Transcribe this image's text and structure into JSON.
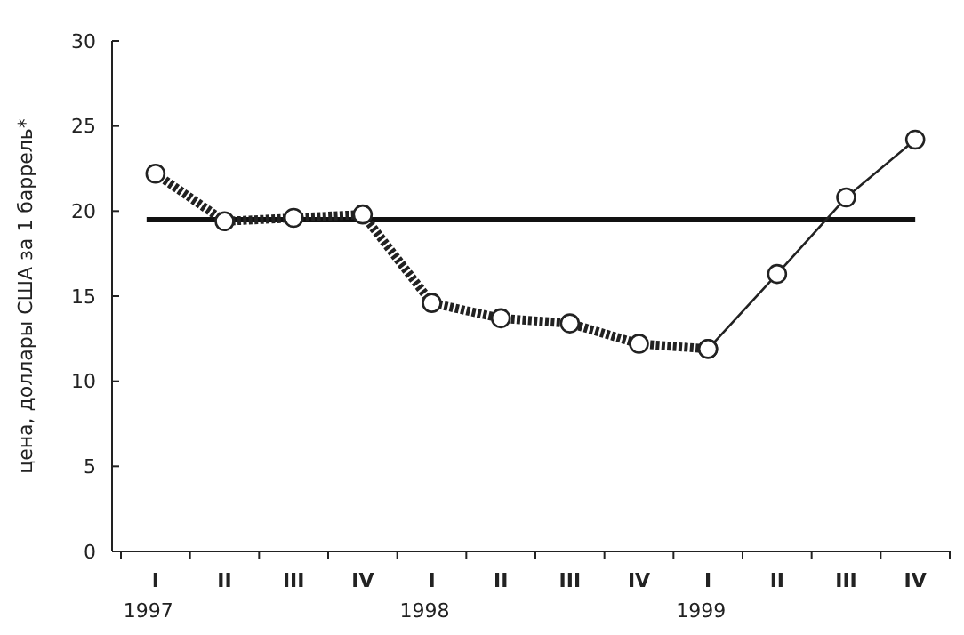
{
  "chart_data": {
    "type": "line",
    "ylabel": "цена, доллары США за 1 баррель*",
    "categories": [
      "I",
      "II",
      "III",
      "IV",
      "I",
      "II",
      "III",
      "IV",
      "I",
      "II",
      "III",
      "IV"
    ],
    "series": [
      {
        "color": "#222222",
        "line_style": "dashed",
        "values": [
          22.2,
          19.4,
          19.6,
          19.8,
          14.6,
          13.7,
          13.4,
          12.2,
          11.9,
          null,
          null,
          null
        ]
      },
      {
        "color": "#222222",
        "line_style": "solid",
        "values": [
          null,
          null,
          null,
          null,
          null,
          null,
          null,
          null,
          11.9,
          16.3,
          20.8,
          24.2
        ]
      }
    ],
    "ylim": [
      0,
      30
    ],
    "yticks": [
      0,
      5,
      10,
      15,
      20,
      25,
      30
    ],
    "marker": "circle",
    "grid": false,
    "ref_lines": [
      {
        "axis": "y",
        "value": 19.5,
        "color": "#111111"
      }
    ],
    "annotations": [
      "1997",
      "1998",
      "1999"
    ]
  }
}
